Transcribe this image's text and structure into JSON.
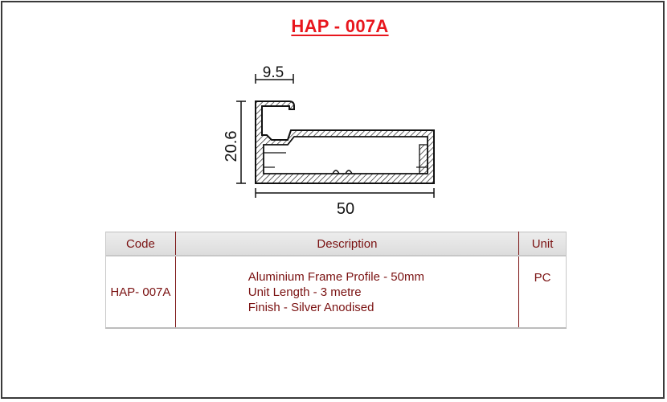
{
  "title": "HAP - 007A",
  "drawing": {
    "top_dimension": "9.5",
    "side_dimension": "20.6",
    "bottom_dimension": "50"
  },
  "table": {
    "headers": {
      "code": "Code",
      "description": "Description",
      "unit": "Unit"
    },
    "rows": [
      {
        "code": "HAP- 007A",
        "description": [
          "Aluminium Frame Profile - 50mm",
          "Unit Length - 3 metre",
          "Finish - Silver Anodised"
        ],
        "unit": "PC"
      }
    ]
  },
  "colors": {
    "title": "#e8161d",
    "table_text": "#7a1111",
    "header_bg": "#e4e4e4"
  }
}
